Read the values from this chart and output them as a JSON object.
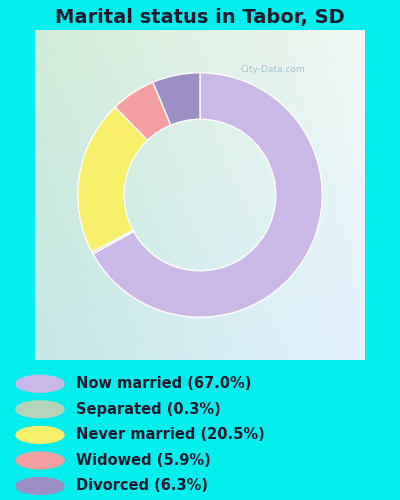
{
  "title": "Marital status in Tabor, SD",
  "slices": [
    {
      "label": "Now married (67.0%)",
      "value": 67.0,
      "color": "#c9b8e8"
    },
    {
      "label": "Separated (0.3%)",
      "value": 0.3,
      "color": "#b8d4b8"
    },
    {
      "label": "Never married (20.5%)",
      "value": 20.5,
      "color": "#f8f06a"
    },
    {
      "label": "Widowed (5.9%)",
      "value": 5.9,
      "color": "#f4a0a0"
    },
    {
      "label": "Divorced (6.3%)",
      "value": 6.3,
      "color": "#9b8ec4"
    }
  ],
  "legend_colors": [
    "#c9b8e8",
    "#b8d4b8",
    "#f8f06a",
    "#f4a0a0",
    "#9b8ec4"
  ],
  "legend_labels": [
    "Now married (67.0%)",
    "Separated (0.3%)",
    "Never married (20.5%)",
    "Widowed (5.9%)",
    "Divorced (6.3%)"
  ],
  "bg_outer_color": "#00eeee",
  "title_color": "#1a1a2e",
  "title_fontsize": 14,
  "legend_fontsize": 10.5,
  "donut_width": 0.38,
  "start_angle": 90
}
